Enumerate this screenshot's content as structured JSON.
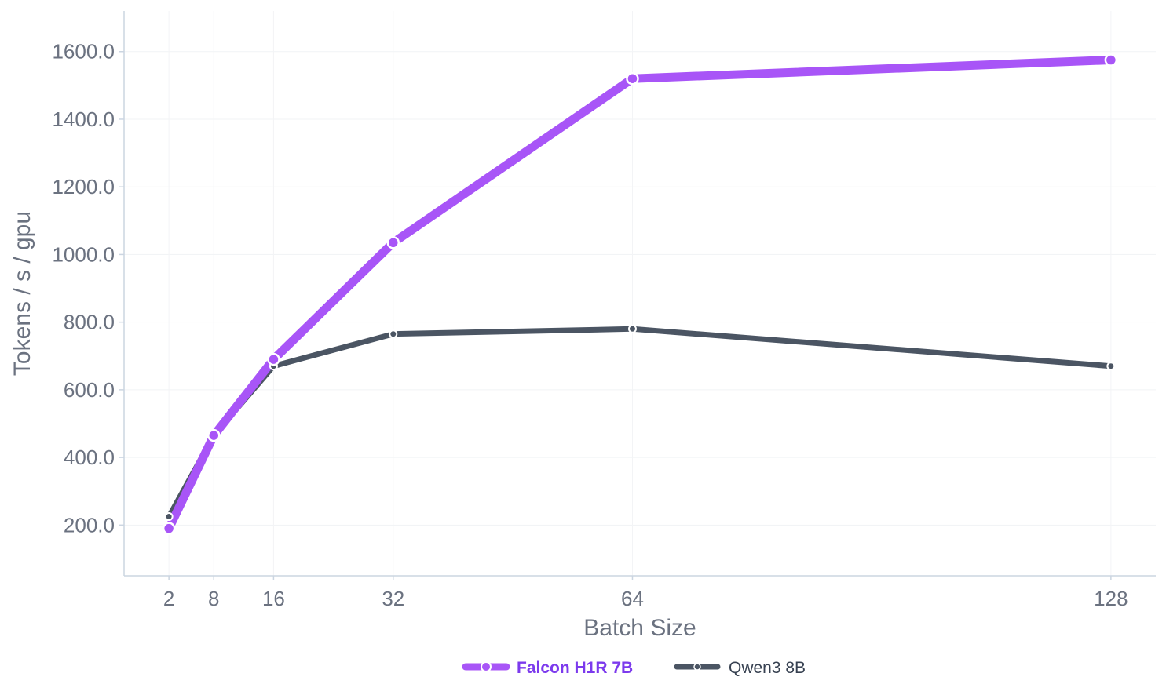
{
  "chart_data": {
    "type": "line",
    "title": "",
    "xlabel": "Batch Size",
    "ylabel": "Tokens / s / gpu",
    "x": [
      2,
      8,
      16,
      32,
      64,
      128
    ],
    "x_tick_labels": [
      "2",
      "8",
      "16",
      "32",
      "64",
      "128"
    ],
    "y_tick_labels": [
      "200.0",
      "400.0",
      "600.0",
      "800.0",
      "1000.0",
      "1200.0",
      "1400.0",
      "1600.0"
    ],
    "xlim": [
      -4,
      134
    ],
    "ylim": [
      50,
      1720
    ],
    "y_ticks": [
      200,
      400,
      600,
      800,
      1000,
      1200,
      1400,
      1600
    ],
    "grid": true,
    "legend_position": "bottom-center",
    "series": [
      {
        "name": "Falcon H1R 7B",
        "values": [
          190,
          465,
          690,
          1035,
          1520,
          1575
        ],
        "color": "#a855f7",
        "legend_color": "#7c3aed"
      },
      {
        "name": "Qwen3 8B",
        "values": [
          225,
          465,
          670,
          765,
          780,
          670
        ],
        "color": "#4b5563",
        "legend_color": "#374151"
      }
    ]
  }
}
